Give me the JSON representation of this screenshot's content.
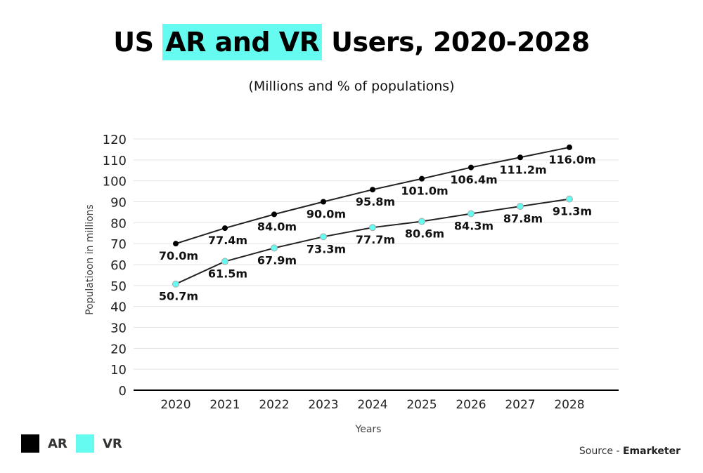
{
  "title": {
    "before": "US ",
    "highlight": "AR and VR",
    "after": " Users, 2020-2028"
  },
  "subtitle": "(Millions and % of populations)",
  "source": {
    "prefix": "Source - ",
    "name": "Emarketer"
  },
  "chart_data": {
    "type": "line",
    "xlabel": "Years",
    "ylabel": "Populatioon in millions",
    "x": [
      "2020",
      "2021",
      "2022",
      "2023",
      "2024",
      "2025",
      "2026",
      "2027",
      "2028"
    ],
    "yticks": [
      "0",
      "10",
      "20",
      "30",
      "40",
      "50",
      "60",
      "70",
      "80",
      "90",
      "100",
      "110",
      "120"
    ],
    "ylim": [
      0,
      120
    ],
    "grid": true,
    "legend_position": "bottom-left",
    "series": [
      {
        "name": "AR",
        "color": "#000000",
        "values": [
          70.0,
          77.4,
          84.0,
          90.0,
          95.8,
          101.0,
          106.4,
          111.2,
          116.0
        ],
        "labels": [
          "70.0m",
          "77.4m",
          "84.0m",
          "90.0m",
          "95.8m",
          "101.0m",
          "106.4m",
          "111.2m",
          "116.0m"
        ]
      },
      {
        "name": "VR",
        "color": "#66fbf0",
        "values": [
          50.7,
          61.5,
          67.9,
          73.3,
          77.7,
          80.6,
          84.3,
          87.8,
          91.3
        ],
        "labels": [
          "50.7m",
          "61.5m",
          "67.9m",
          "73.3m",
          "77.7m",
          "80.6m",
          "84.3m",
          "87.8m",
          "91.3m"
        ]
      }
    ]
  }
}
